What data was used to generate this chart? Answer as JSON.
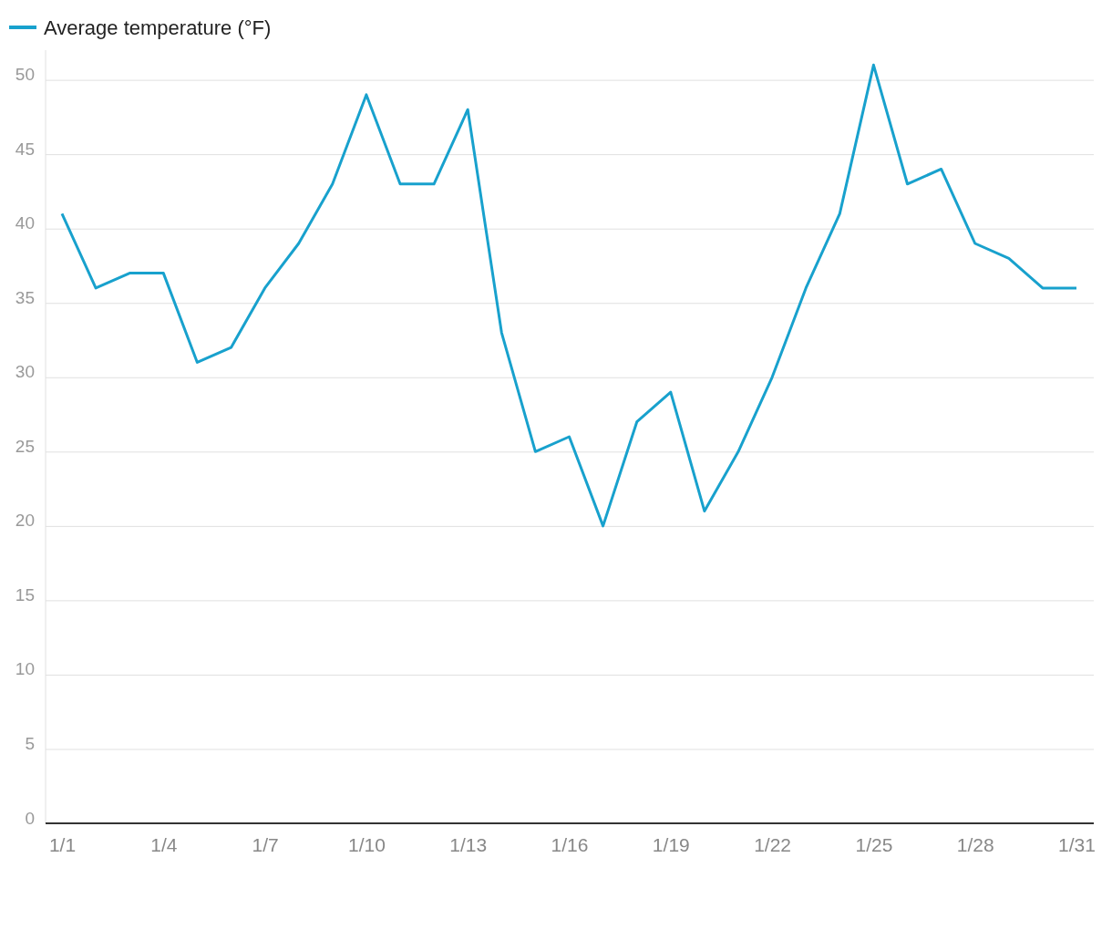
{
  "chart_data": {
    "type": "line",
    "categories": [
      "1/1",
      null,
      null,
      "1/4",
      null,
      null,
      "1/7",
      null,
      null,
      "1/10",
      null,
      null,
      "1/13",
      null,
      null,
      "1/16",
      null,
      null,
      "1/19",
      null,
      null,
      "1/22",
      null,
      null,
      "1/25",
      null,
      null,
      "1/28",
      null,
      null,
      "1/31"
    ],
    "series": [
      {
        "name": "Average temperature (°F)",
        "color": "#18a1cd",
        "values": [
          41,
          36,
          37,
          37,
          31,
          32,
          36,
          39,
          43,
          49,
          43,
          43,
          48,
          33,
          25,
          26,
          20,
          27,
          29,
          21,
          25,
          30,
          36,
          41,
          51,
          43,
          44,
          39,
          38,
          36,
          36
        ]
      }
    ],
    "ylim": [
      0,
      52
    ],
    "yticks": [
      0,
      5,
      10,
      15,
      20,
      25,
      30,
      35,
      40,
      45,
      50
    ],
    "grid": "y",
    "legend": "top left",
    "marker": "none",
    "line_style": "solid"
  }
}
